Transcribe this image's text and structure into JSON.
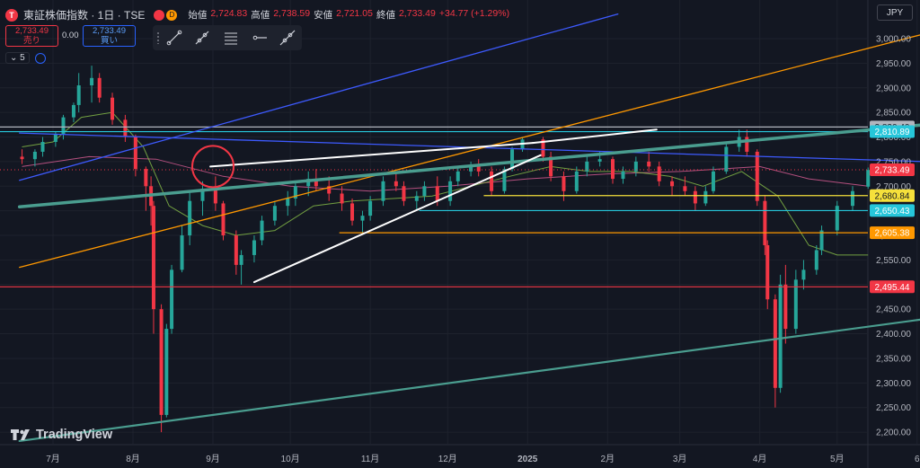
{
  "header": {
    "logo_letter": "T",
    "symbol": "東証株価指数 · 1日 · TSE",
    "badge_right": "D",
    "ohlc": [
      {
        "k": "始値",
        "v": "2,724.83"
      },
      {
        "k": "高値",
        "v": "2,738.59"
      },
      {
        "k": "安値",
        "v": "2,721.05"
      },
      {
        "k": "終値",
        "v": "2,733.49"
      },
      {
        "k": "",
        "v": "+34.77 (+1.29%)"
      }
    ]
  },
  "trade": {
    "sell_price": "2,733.49",
    "sell_label": "売り",
    "spread": "0.00",
    "buy_price": "2,733.49",
    "buy_label": "買い"
  },
  "volume_toggle": {
    "chevron": "⌄",
    "value": "5"
  },
  "currency": "JPY",
  "brand": {
    "name": "TradingView",
    "icon": "tradingview-logo-icon"
  },
  "drawing_tools": [
    "trend-line-icon",
    "ray-icon",
    "fib-lines-icon",
    "horizontal-ray-icon",
    "extended-line-icon"
  ],
  "colors": {
    "background": "#131722",
    "up": "#26a69a",
    "down": "#f23645",
    "blue": "#3d5afe",
    "orange": "#ff9800",
    "teal_line": "#4a9d8f",
    "yellow": "#f5e03b",
    "cyan": "#26c6da",
    "white": "#ffffff",
    "red": "#f23645"
  },
  "chart_data": {
    "type": "candlestick",
    "yaxis_ticks": [
      3000,
      2950,
      2900,
      2850,
      2800,
      2750,
      2700,
      2650,
      2600,
      2550,
      2500,
      2450,
      2400,
      2350,
      2300,
      2250,
      2200
    ],
    "ylim": [
      2175,
      3020
    ],
    "xaxis_labels": [
      "7月",
      "8月",
      "9月",
      "10月",
      "11月",
      "12月",
      "2025",
      "2月",
      "3月",
      "4月",
      "5月",
      "6"
    ],
    "current_price": "2,733.49",
    "price_labels": [
      {
        "value": 2820.4,
        "text": "2,820.40",
        "color": "#b2b5be"
      },
      {
        "value": 2810.89,
        "text": "2,810.89",
        "color": "#26c6da"
      },
      {
        "value": 2733.49,
        "text": "2,733.49",
        "color": "#f23645"
      },
      {
        "value": 2680.84,
        "text": "2,680.84",
        "color": "#f5e03b"
      },
      {
        "value": 2650.43,
        "text": "2,650.43",
        "color": "#26c6da"
      },
      {
        "value": 2605.38,
        "text": "2,605.38",
        "color": "#ff9800"
      },
      {
        "value": 2495.44,
        "text": "2,495.44",
        "color": "#f23645"
      }
    ],
    "horizontal_lines": [
      {
        "value": 2820.4,
        "color": "#b2b5be",
        "from": "start"
      },
      {
        "value": 2810.89,
        "color": "#26c6da",
        "from": "start"
      },
      {
        "value": 2680.84,
        "color": "#f5e03b",
        "from": "2024-12-15"
      },
      {
        "value": 2650.43,
        "color": "#26c6da",
        "from": "2024-11-20"
      },
      {
        "value": 2605.38,
        "color": "#ff9800",
        "from": "2024-10-20"
      },
      {
        "value": 2495.44,
        "color": "#f23645",
        "from": "start"
      }
    ],
    "trend_lines": [
      {
        "color": "#3d5afe",
        "p1": [
          "2024-06-18",
          2712
        ],
        "p2": [
          "2025-02-05",
          3050
        ],
        "width": 1.3
      },
      {
        "color": "#3d5afe",
        "p1": [
          "2024-06-18",
          2808
        ],
        "p2": [
          "2025-06-04",
          2750
        ],
        "width": 1.3
      },
      {
        "color": "#ff9800",
        "p1": [
          "2024-06-18",
          2535
        ],
        "p2": [
          "2025-06-04",
          3010
        ],
        "width": 1.3
      },
      {
        "color": "#4a9d8f",
        "p1": [
          "2024-06-18",
          2658
        ],
        "p2": [
          "2025-06-04",
          2825
        ],
        "width": 3.5
      },
      {
        "color": "#4a9d8f",
        "p1": [
          "2024-06-18",
          2182
        ],
        "p2": [
          "2025-06-04",
          2430
        ],
        "width": 2.2
      },
      {
        "color": "#ffffff",
        "p1": [
          "2024-08-31",
          2740
        ],
        "p2": [
          "2025-01-03",
          2788
        ],
        "width": 2
      },
      {
        "color": "#ffffff",
        "p1": [
          "2025-01-03",
          2788
        ],
        "p2": [
          "2025-02-20",
          2815
        ],
        "width": 2
      },
      {
        "color": "#ffffff",
        "p1": [
          "2024-09-17",
          2505
        ],
        "p2": [
          "2025-01-06",
          2763
        ],
        "width": 2
      }
    ],
    "circle_annotation": {
      "date": "2024-09-01",
      "value": 2740,
      "color": "#f23645"
    },
    "candles": [
      [
        "2024-06-19",
        2760,
        2775,
        2745,
        2755
      ],
      [
        "2024-06-24",
        2755,
        2775,
        2740,
        2770
      ],
      [
        "2024-06-27",
        2770,
        2800,
        2760,
        2790
      ],
      [
        "2024-07-02",
        2790,
        2810,
        2780,
        2805
      ],
      [
        "2024-07-05",
        2805,
        2845,
        2795,
        2840
      ],
      [
        "2024-07-09",
        2840,
        2870,
        2830,
        2865
      ],
      [
        "2024-07-11",
        2865,
        2930,
        2850,
        2905
      ],
      [
        "2024-07-16",
        2905,
        2945,
        2870,
        2920
      ],
      [
        "2024-07-19",
        2920,
        2930,
        2870,
        2880
      ],
      [
        "2024-07-24",
        2880,
        2890,
        2825,
        2835
      ],
      [
        "2024-07-29",
        2835,
        2845,
        2790,
        2800
      ],
      [
        "2024-08-02",
        2800,
        2805,
        2720,
        2735
      ],
      [
        "2024-08-06",
        2735,
        2740,
        2650,
        2700
      ],
      [
        "2024-08-08",
        2700,
        2720,
        2620,
        2660
      ],
      [
        "2024-08-09",
        2660,
        2670,
        2400,
        2450
      ],
      [
        "2024-08-12",
        2450,
        2460,
        2200,
        2235
      ],
      [
        "2024-08-14",
        2235,
        2420,
        2230,
        2410
      ],
      [
        "2024-08-16",
        2410,
        2540,
        2400,
        2530
      ],
      [
        "2024-08-20",
        2530,
        2620,
        2525,
        2600
      ],
      [
        "2024-08-23",
        2600,
        2690,
        2580,
        2670
      ],
      [
        "2024-08-28",
        2670,
        2710,
        2640,
        2695
      ],
      [
        "2024-09-02",
        2695,
        2720,
        2650,
        2665
      ],
      [
        "2024-09-05",
        2665,
        2670,
        2590,
        2600
      ],
      [
        "2024-09-10",
        2600,
        2610,
        2520,
        2540
      ],
      [
        "2024-09-12",
        2540,
        2570,
        2500,
        2560
      ],
      [
        "2024-09-17",
        2560,
        2600,
        2545,
        2590
      ],
      [
        "2024-09-20",
        2590,
        2640,
        2580,
        2630
      ],
      [
        "2024-09-25",
        2630,
        2670,
        2620,
        2660
      ],
      [
        "2024-09-30",
        2660,
        2690,
        2640,
        2675
      ],
      [
        "2024-10-03",
        2675,
        2710,
        2660,
        2700
      ],
      [
        "2024-10-08",
        2700,
        2730,
        2680,
        2715
      ],
      [
        "2024-10-11",
        2715,
        2735,
        2690,
        2700
      ],
      [
        "2024-10-16",
        2700,
        2720,
        2670,
        2685
      ],
      [
        "2024-10-21",
        2685,
        2700,
        2650,
        2665
      ],
      [
        "2024-10-25",
        2665,
        2675,
        2620,
        2630
      ],
      [
        "2024-10-29",
        2630,
        2650,
        2605,
        2640
      ],
      [
        "2024-11-01",
        2640,
        2680,
        2630,
        2670
      ],
      [
        "2024-11-06",
        2670,
        2720,
        2660,
        2710
      ],
      [
        "2024-11-11",
        2710,
        2730,
        2690,
        2700
      ],
      [
        "2024-11-14",
        2700,
        2710,
        2660,
        2670
      ],
      [
        "2024-11-19",
        2670,
        2690,
        2650,
        2680
      ],
      [
        "2024-11-22",
        2680,
        2710,
        2670,
        2700
      ],
      [
        "2024-11-27",
        2700,
        2720,
        2660,
        2670
      ],
      [
        "2024-12-02",
        2670,
        2720,
        2660,
        2710
      ],
      [
        "2024-12-05",
        2710,
        2740,
        2700,
        2730
      ],
      [
        "2024-12-10",
        2730,
        2750,
        2720,
        2740
      ],
      [
        "2024-12-13",
        2740,
        2755,
        2720,
        2730
      ],
      [
        "2024-12-18",
        2730,
        2740,
        2680,
        2690
      ],
      [
        "2024-12-23",
        2690,
        2740,
        2685,
        2735
      ],
      [
        "2024-12-26",
        2735,
        2780,
        2730,
        2775
      ],
      [
        "2024-12-30",
        2775,
        2800,
        2770,
        2795
      ],
      [
        "2025-01-07",
        2795,
        2800,
        2750,
        2760
      ],
      [
        "2025-01-10",
        2760,
        2770,
        2710,
        2720
      ],
      [
        "2025-01-15",
        2720,
        2730,
        2670,
        2690
      ],
      [
        "2025-01-20",
        2690,
        2740,
        2685,
        2730
      ],
      [
        "2025-01-24",
        2730,
        2760,
        2720,
        2750
      ],
      [
        "2025-01-29",
        2750,
        2770,
        2740,
        2755
      ],
      [
        "2025-02-03",
        2755,
        2760,
        2705,
        2715
      ],
      [
        "2025-02-07",
        2715,
        2740,
        2705,
        2730
      ],
      [
        "2025-02-12",
        2730,
        2760,
        2720,
        2750
      ],
      [
        "2025-02-17",
        2750,
        2770,
        2730,
        2740
      ],
      [
        "2025-02-21",
        2740,
        2750,
        2700,
        2710
      ],
      [
        "2025-02-26",
        2710,
        2720,
        2680,
        2700
      ],
      [
        "2025-03-03",
        2700,
        2720,
        2680,
        2690
      ],
      [
        "2025-03-07",
        2690,
        2700,
        2650,
        2665
      ],
      [
        "2025-03-11",
        2665,
        2700,
        2660,
        2690
      ],
      [
        "2025-03-14",
        2690,
        2740,
        2685,
        2730
      ],
      [
        "2025-03-19",
        2730,
        2790,
        2725,
        2780
      ],
      [
        "2025-03-24",
        2780,
        2815,
        2770,
        2800
      ],
      [
        "2025-03-27",
        2800,
        2815,
        2760,
        2770
      ],
      [
        "2025-03-31",
        2770,
        2775,
        2660,
        2670
      ],
      [
        "2025-04-03",
        2670,
        2680,
        2560,
        2580
      ],
      [
        "2025-04-04",
        2580,
        2590,
        2450,
        2470
      ],
      [
        "2025-04-07",
        2470,
        2480,
        2250,
        2290
      ],
      [
        "2025-04-09",
        2290,
        2520,
        2280,
        2500
      ],
      [
        "2025-04-11",
        2500,
        2540,
        2380,
        2410
      ],
      [
        "2025-04-15",
        2410,
        2530,
        2400,
        2510
      ],
      [
        "2025-04-18",
        2510,
        2550,
        2490,
        2530
      ],
      [
        "2025-04-23",
        2530,
        2580,
        2520,
        2570
      ],
      [
        "2025-04-25",
        2570,
        2620,
        2560,
        2610
      ],
      [
        "2025-05-01",
        2610,
        2670,
        2600,
        2660
      ],
      [
        "2025-05-07",
        2660,
        2700,
        2650,
        2690
      ],
      [
        "2025-05-13",
        2699,
        2738,
        2695,
        2733
      ]
    ],
    "ma_short": [
      [
        "2024-06-19",
        2780
      ],
      [
        "2024-07-01",
        2790
      ],
      [
        "2024-07-12",
        2840
      ],
      [
        "2024-07-24",
        2850
      ],
      [
        "2024-08-05",
        2780
      ],
      [
        "2024-08-15",
        2660
      ],
      [
        "2024-08-28",
        2620
      ],
      [
        "2024-09-10",
        2600
      ],
      [
        "2024-09-25",
        2610
      ],
      [
        "2024-10-10",
        2660
      ],
      [
        "2024-10-25",
        2670
      ],
      [
        "2024-11-10",
        2675
      ],
      [
        "2024-11-25",
        2680
      ],
      [
        "2024-12-10",
        2700
      ],
      [
        "2024-12-25",
        2720
      ],
      [
        "2025-01-10",
        2740
      ],
      [
        "2025-01-25",
        2730
      ],
      [
        "2025-02-10",
        2730
      ],
      [
        "2025-02-25",
        2720
      ],
      [
        "2025-03-10",
        2700
      ],
      [
        "2025-03-25",
        2730
      ],
      [
        "2025-04-08",
        2680
      ],
      [
        "2025-04-20",
        2580
      ],
      [
        "2025-05-01",
        2560
      ],
      [
        "2025-05-13",
        2560
      ]
    ],
    "ma_long": [
      [
        "2024-06-19",
        2740
      ],
      [
        "2024-07-15",
        2760
      ],
      [
        "2024-08-10",
        2755
      ],
      [
        "2024-09-05",
        2720
      ],
      [
        "2024-10-01",
        2700
      ],
      [
        "2024-11-01",
        2690
      ],
      [
        "2024-12-01",
        2700
      ],
      [
        "2025-01-01",
        2715
      ],
      [
        "2025-02-01",
        2725
      ],
      [
        "2025-03-01",
        2730
      ],
      [
        "2025-04-01",
        2740
      ],
      [
        "2025-04-20",
        2715
      ],
      [
        "2025-05-13",
        2700
      ]
    ]
  }
}
